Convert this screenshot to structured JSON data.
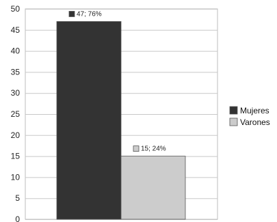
{
  "chart_data": {
    "type": "bar",
    "title": "",
    "xlabel": "",
    "ylabel": "",
    "ylim": [
      0,
      50
    ],
    "y_ticks": [
      0,
      5,
      10,
      15,
      20,
      25,
      30,
      35,
      40,
      45,
      50
    ],
    "grid": true,
    "legend_position": "right",
    "series": [
      {
        "name": "Mujeres",
        "value": 47,
        "label": "47; 76%",
        "color": "#333333"
      },
      {
        "name": "Varones",
        "value": 15,
        "label": "15; 24%",
        "color": "#cccccc"
      }
    ]
  }
}
